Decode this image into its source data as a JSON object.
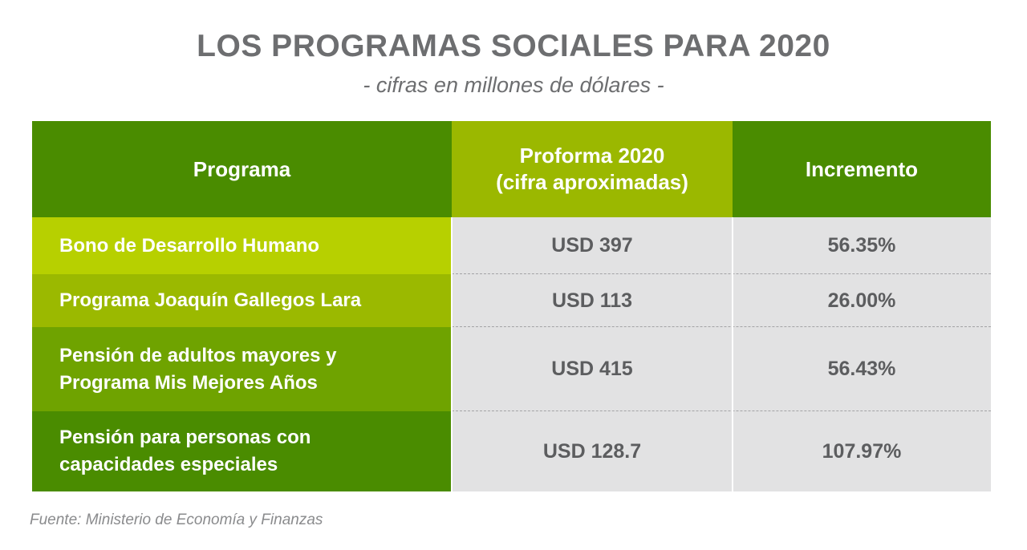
{
  "title": "LOS PROGRAMAS SOCIALES PARA 2020",
  "subtitle": "- cifras en millones de dólares -",
  "source": "Fuente: Ministerio de Economía y Finanzas",
  "colors": {
    "header_dark_green": "#4a8c00",
    "header_light_green": "#9bb800",
    "row1_green": "#b7d000",
    "row2_green": "#9bb900",
    "row3_green": "#6fa300",
    "row4_green": "#4a8c00",
    "value_bg": "#e2e2e3"
  },
  "chart_data": {
    "type": "table",
    "title": "LOS PROGRAMAS SOCIALES PARA 2020",
    "subtitle": "- cifras en millones de dólares -",
    "columns": [
      "Programa",
      "Proforma 2020\n(cifra aproximadas)",
      "Incremento"
    ],
    "rows": [
      {
        "programa": "Bono de Desarrollo Humano",
        "proforma": "USD 397",
        "incremento": "56.35%"
      },
      {
        "programa": "Programa Joaquín Gallegos Lara",
        "proforma": "USD 113",
        "incremento": "26.00%"
      },
      {
        "programa": "Pensión de adultos mayores y Programa Mis Mejores Años",
        "proforma": "USD 415",
        "incremento": "56.43%"
      },
      {
        "programa": "Pensión para personas con capacidades especiales",
        "proforma": "USD 128.7",
        "incremento": "107.97%"
      }
    ],
    "values": [
      397,
      113,
      415,
      128.7
    ],
    "increments": [
      56.35,
      26.0,
      56.43,
      107.97
    ]
  }
}
